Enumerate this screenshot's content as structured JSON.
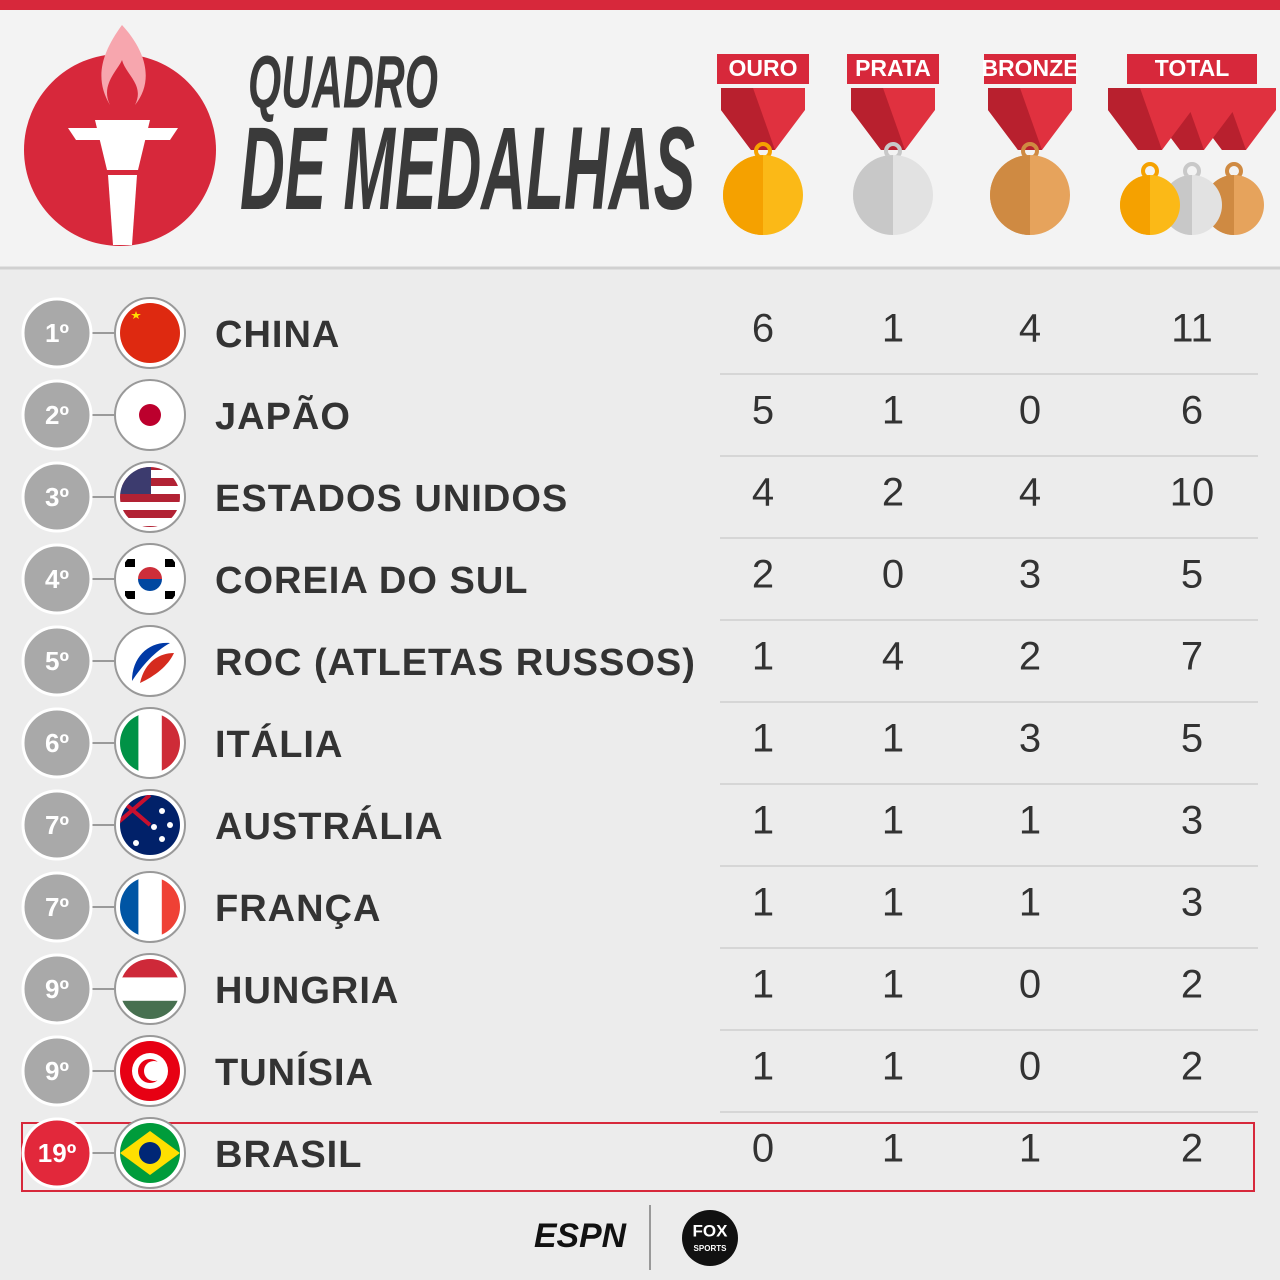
{
  "header": {
    "title_line1": "QUADRO",
    "title_line2": "DE MEDALHAS"
  },
  "columns": [
    "OURO",
    "PRATA",
    "BRONZE",
    "TOTAL"
  ],
  "rows": [
    {
      "rank": "1º",
      "country": "CHINA",
      "values": [
        6,
        1,
        4,
        11
      ]
    },
    {
      "rank": "2º",
      "country": "JAPÃO",
      "values": [
        5,
        1,
        0,
        6
      ]
    },
    {
      "rank": "3º",
      "country": "ESTADOS UNIDOS",
      "values": [
        4,
        2,
        4,
        10
      ]
    },
    {
      "rank": "4º",
      "country": "COREIA DO SUL",
      "values": [
        2,
        0,
        3,
        5
      ]
    },
    {
      "rank": "5º",
      "country": "ROC (ATLETAS RUSSOS)",
      "values": [
        1,
        4,
        2,
        7
      ]
    },
    {
      "rank": "6º",
      "country": "ITÁLIA",
      "values": [
        1,
        1,
        3,
        5
      ]
    },
    {
      "rank": "7º",
      "country": "AUSTRÁLIA",
      "values": [
        1,
        1,
        1,
        3
      ]
    },
    {
      "rank": "7º",
      "country": "FRANÇA",
      "values": [
        1,
        1,
        1,
        3
      ]
    },
    {
      "rank": "9º",
      "country": "HUNGRIA",
      "values": [
        1,
        1,
        0,
        2
      ]
    },
    {
      "rank": "9º",
      "country": "TUNÍSIA",
      "values": [
        1,
        1,
        0,
        2
      ]
    },
    {
      "rank": "19º",
      "country": "BRASIL",
      "values": [
        0,
        1,
        1,
        2
      ],
      "highlighted": true
    }
  ],
  "footer": {
    "logo_left": "ESPN",
    "logo_right_top": "FOX",
    "logo_right_bottom": "SPORTS"
  }
}
